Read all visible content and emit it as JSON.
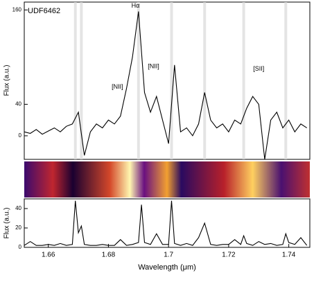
{
  "chart_data": [
    {
      "type": "line",
      "title": "UDF6462",
      "ylabel": "Flux (a.u.)",
      "color": "#000000",
      "xlim": [
        1.652,
        1.747
      ],
      "ylim": [
        -30,
        170
      ],
      "yticks": [
        0,
        40,
        160
      ],
      "sky_lines": [
        1.669,
        1.671,
        1.69,
        1.701,
        1.712,
        1.725,
        1.739
      ],
      "x": [
        1.652,
        1.654,
        1.656,
        1.658,
        1.66,
        1.662,
        1.664,
        1.666,
        1.668,
        1.67,
        1.672,
        1.674,
        1.676,
        1.678,
        1.68,
        1.682,
        1.684,
        1.686,
        1.688,
        1.69,
        1.692,
        1.694,
        1.696,
        1.698,
        1.7,
        1.702,
        1.704,
        1.706,
        1.708,
        1.71,
        1.712,
        1.714,
        1.716,
        1.718,
        1.72,
        1.722,
        1.724,
        1.726,
        1.728,
        1.73,
        1.732,
        1.734,
        1.736,
        1.738,
        1.74,
        1.742,
        1.744,
        1.746
      ],
      "values": [
        5,
        3,
        8,
        2,
        6,
        10,
        5,
        12,
        15,
        30,
        -25,
        5,
        15,
        10,
        20,
        15,
        25,
        60,
        100,
        158,
        55,
        30,
        50,
        20,
        -10,
        90,
        5,
        10,
        0,
        15,
        55,
        20,
        10,
        15,
        5,
        20,
        15,
        35,
        50,
        40,
        -30,
        20,
        30,
        10,
        20,
        5,
        15,
        10
      ],
      "annotations": [
        {
          "text": "Hα",
          "x": 1.689,
          "y": 165
        },
        {
          "text": "[NII]",
          "x": 1.683,
          "y": 62
        },
        {
          "text": "[NII]",
          "x": 1.695,
          "y": 88
        },
        {
          "text": "[SII]",
          "x": 1.73,
          "y": 85
        }
      ]
    },
    {
      "type": "line",
      "ylabel": "Flux (a.u.)",
      "xlabel": "Wavelength (μm)",
      "color": "#000000",
      "xlim": [
        1.652,
        1.747
      ],
      "ylim": [
        0,
        50
      ],
      "yticks": [
        0,
        20,
        40
      ],
      "xticks": [
        1.66,
        1.68,
        1.7,
        1.72,
        1.74
      ],
      "x": [
        1.652,
        1.654,
        1.656,
        1.658,
        1.66,
        1.662,
        1.664,
        1.666,
        1.668,
        1.669,
        1.67,
        1.671,
        1.672,
        1.674,
        1.676,
        1.678,
        1.68,
        1.682,
        1.684,
        1.686,
        1.688,
        1.69,
        1.691,
        1.692,
        1.694,
        1.696,
        1.698,
        1.7,
        1.701,
        1.702,
        1.704,
        1.706,
        1.708,
        1.71,
        1.712,
        1.714,
        1.716,
        1.718,
        1.72,
        1.722,
        1.724,
        1.725,
        1.726,
        1.728,
        1.73,
        1.732,
        1.734,
        1.736,
        1.738,
        1.739,
        1.74,
        1.742,
        1.744,
        1.746
      ],
      "values": [
        2,
        6,
        2,
        2,
        3,
        2,
        4,
        2,
        3,
        48,
        15,
        22,
        3,
        2,
        2,
        3,
        2,
        2,
        8,
        2,
        3,
        5,
        44,
        5,
        3,
        14,
        3,
        3,
        48,
        4,
        2,
        4,
        2,
        10,
        25,
        3,
        2,
        3,
        3,
        8,
        3,
        12,
        4,
        2,
        6,
        3,
        4,
        2,
        3,
        14,
        5,
        3,
        10,
        2
      ]
    }
  ]
}
